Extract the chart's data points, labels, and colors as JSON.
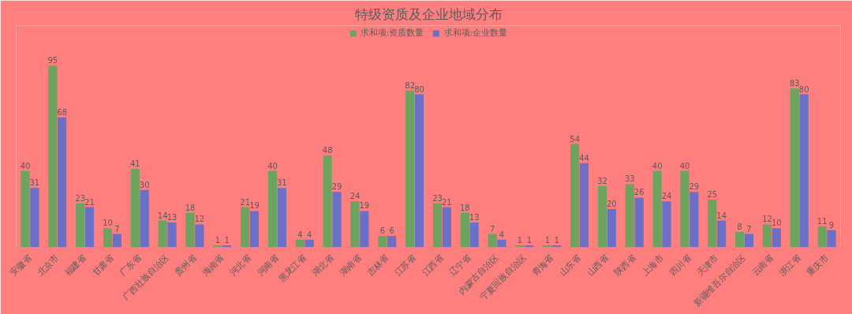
{
  "chart_data": {
    "type": "bar",
    "title": "特级资质及企业地域分布",
    "categories": [
      "安徽省",
      "北京市",
      "福建省",
      "甘肃省",
      "广东省",
      "广西壮族自治区",
      "贵州省",
      "海南省",
      "河北省",
      "河南省",
      "黑龙江省",
      "湖北省",
      "湖南省",
      "吉林省",
      "江苏省",
      "江西省",
      "辽宁省",
      "内蒙古自治区",
      "宁夏回族自治区",
      "青海省",
      "山东省",
      "山西省",
      "陕西省",
      "上海市",
      "四川省",
      "天津市",
      "新疆维吾尔自治区",
      "云南省",
      "浙江省",
      "重庆市"
    ],
    "series": [
      {
        "name": "求和项:资质数量",
        "color": "#6ca35e",
        "values": [
          40,
          95,
          23,
          10,
          41,
          14,
          18,
          1,
          21,
          40,
          4,
          48,
          24,
          6,
          82,
          23,
          18,
          7,
          1,
          1,
          54,
          32,
          33,
          40,
          40,
          25,
          8,
          12,
          83,
          11
        ]
      },
      {
        "name": "求和项:企业数量",
        "color": "#6b6fc6",
        "values": [
          31,
          68,
          21,
          7,
          30,
          13,
          12,
          1,
          19,
          31,
          4,
          29,
          19,
          6,
          80,
          21,
          13,
          4,
          1,
          1,
          44,
          20,
          26,
          24,
          29,
          14,
          7,
          10,
          80,
          9
        ]
      }
    ],
    "data_labels": true,
    "legend": "top",
    "grid": false
  }
}
